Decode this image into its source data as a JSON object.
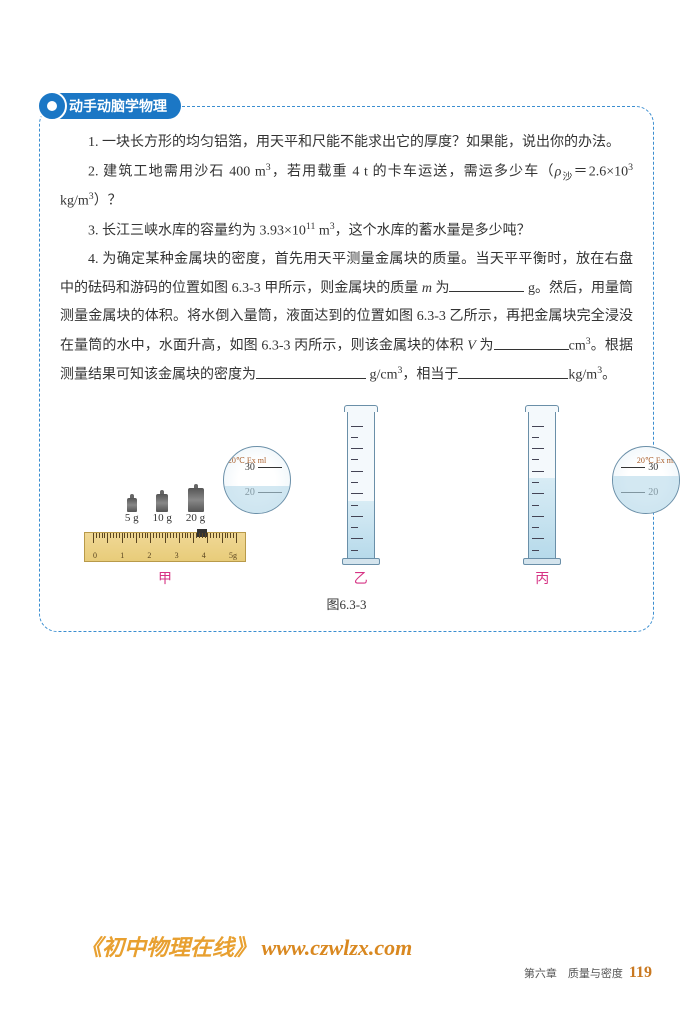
{
  "section": {
    "title": "动手动脑学物理"
  },
  "problems": {
    "p1": "1. 一块长方形的均匀铝箔，用天平和尺能不能求出它的厚度？如果能，说出你的办法。",
    "p2_pre": "2. 建筑工地需用沙石 400 m",
    "p2_mid": "，若用载重 4 t 的卡车运送，需运多少车（",
    "p2_rho": "ρ",
    "p2_sub": "沙",
    "p2_eq": "＝",
    "p2_val": "2.6×10",
    "p2_unit": " kg/m",
    "p2_end": "）？",
    "p3_pre": "3. 长江三峡水库的容量约为 3.93×10",
    "p3_exp": "11",
    "p3_mid": " m",
    "p3_end": "，这个水库的蓄水量是多少吨？",
    "p4_a": "4. 为确定某种金属块的密度，首先用天平测量金属块的质量。当天平平衡时，放在右盘中的砝码和游码的位置如图 6.3-3 甲所示，则金属块的质量 ",
    "p4_m": "m",
    "p4_b": " 为",
    "p4_unit1": " g。然后，用量筒测量金属块的体积。将水倒入量筒，液面达到的位置如图 6.3-3 乙所示，再把金属块完全浸没在量筒的水中，水面升高，如图 6.3-3 丙所示，则该金属块的体积 ",
    "p4_v": "V",
    "p4_c": "为",
    "p4_unit2": "cm",
    "p4_d": "。根据测量结果可知该金属块的密度为",
    "p4_unit3": " g/cm",
    "p4_e": "，相当于",
    "p4_unit4": "kg/m",
    "p4_f": "。"
  },
  "figure": {
    "weights": {
      "w5": "5 g",
      "w10": "10 g",
      "w20": "20 g"
    },
    "ruler_marks": [
      "0",
      "1",
      "2",
      "3",
      "4",
      "5g"
    ],
    "cylinder_label": "20℃\nEx ml",
    "zoom_values": [
      "30",
      "20"
    ],
    "labels": {
      "jia": "甲",
      "yi": "乙",
      "bing": "丙"
    },
    "caption": "图6.3-3"
  },
  "footer": {
    "watermark_text": "《初中物理在线》",
    "watermark_url": "www.czwlzx.com",
    "chapter": "第六章　质量与密度",
    "page": "119"
  },
  "colors": {
    "header_bg": "#1b77c5",
    "border": "#3b8ed0",
    "label_pink": "#d63384",
    "watermark": "#e8a030",
    "page_num": "#c97820"
  }
}
